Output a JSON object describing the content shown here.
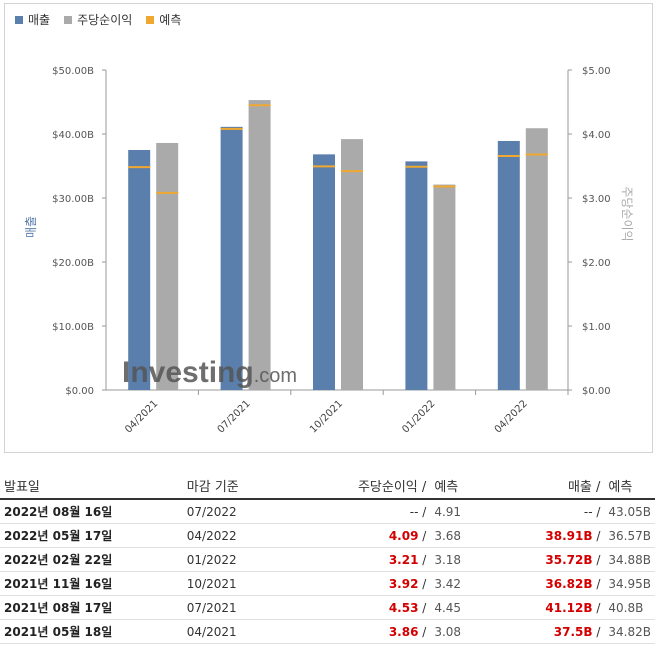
{
  "legend": {
    "items": [
      {
        "label": "매출",
        "color": "#5b7fad"
      },
      {
        "label": "주당순이익",
        "color": "#aaaaaa"
      },
      {
        "label": "예측",
        "color": "#f0a830"
      }
    ]
  },
  "chart_data": {
    "type": "bar",
    "categories": [
      "04/2021",
      "07/2021",
      "10/2021",
      "01/2022",
      "04/2022"
    ],
    "series": [
      {
        "name": "매출",
        "axis": "left",
        "values": [
          37.5,
          41.12,
          36.82,
          35.72,
          38.91
        ],
        "color": "#5b7fad"
      },
      {
        "name": "주당순이익",
        "axis": "right",
        "values": [
          3.86,
          4.53,
          3.92,
          3.21,
          4.09
        ],
        "color": "#aaaaaa"
      }
    ],
    "forecast": {
      "name": "예측",
      "color": "#f0a830",
      "revenue": [
        34.82,
        40.8,
        34.95,
        34.88,
        36.57
      ],
      "eps": [
        3.08,
        4.45,
        3.42,
        3.18,
        3.68
      ]
    },
    "ylabel_left": "매출",
    "ylabel_right": "주당순이익",
    "yticks_left": [
      "$0.00",
      "$10.00B",
      "$20.00B",
      "$30.00B",
      "$40.00B",
      "$50.00B"
    ],
    "yticks_right": [
      "$0.00",
      "$1.00",
      "$2.00",
      "$3.00",
      "$4.00",
      "$5.00"
    ],
    "ylim_left": [
      0,
      50
    ],
    "ylim_right": [
      0,
      5
    ],
    "grid": false,
    "legend_position": "top-left",
    "watermark": "Investing.com"
  },
  "table": {
    "headers": {
      "date": "발표일",
      "period": "마감 기준",
      "eps": "주당순이익",
      "eps_slash": "/",
      "eps_forecast": "예측",
      "revenue": "매출",
      "revenue_slash": "/",
      "revenue_forecast": "예측"
    },
    "rows": [
      {
        "date": "2022년 08월 16일",
        "period": "07/2022",
        "eps": "--",
        "eps_forecast": "4.91",
        "revenue": "--",
        "revenue_forecast": "43.05B",
        "actual": false
      },
      {
        "date": "2022년 05월 17일",
        "period": "04/2022",
        "eps": "4.09",
        "eps_forecast": "3.68",
        "revenue": "38.91B",
        "revenue_forecast": "36.57B",
        "actual": true
      },
      {
        "date": "2022년 02월 22일",
        "period": "01/2022",
        "eps": "3.21",
        "eps_forecast": "3.18",
        "revenue": "35.72B",
        "revenue_forecast": "34.88B",
        "actual": true
      },
      {
        "date": "2021년 11월 16일",
        "period": "10/2021",
        "eps": "3.92",
        "eps_forecast": "3.42",
        "revenue": "36.82B",
        "revenue_forecast": "34.95B",
        "actual": true
      },
      {
        "date": "2021년 08월 17일",
        "period": "07/2021",
        "eps": "4.53",
        "eps_forecast": "4.45",
        "revenue": "41.12B",
        "revenue_forecast": "40.8B",
        "actual": true
      },
      {
        "date": "2021년 05월 18일",
        "period": "04/2021",
        "eps": "3.86",
        "eps_forecast": "3.08",
        "revenue": "37.5B",
        "revenue_forecast": "34.82B",
        "actual": true
      }
    ]
  }
}
